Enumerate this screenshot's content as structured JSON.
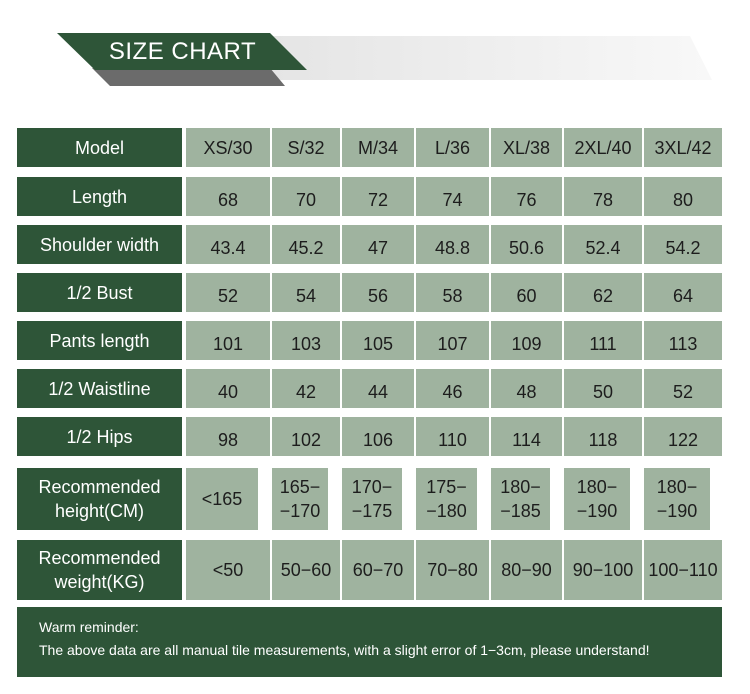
{
  "header": {
    "title": "SIZE CHART"
  },
  "table": {
    "header_label": "Model",
    "sizes": [
      "XS/30",
      "S/32",
      "M/34",
      "L/36",
      "XL/38",
      "2XL/40",
      "3XL/42"
    ],
    "rows": [
      {
        "label": "Length",
        "values": [
          "68",
          "70",
          "72",
          "74",
          "76",
          "78",
          "80"
        ]
      },
      {
        "label": "Shoulder width",
        "values": [
          "43.4",
          "45.2",
          "47",
          "48.8",
          "50.6",
          "52.4",
          "54.2"
        ]
      },
      {
        "label": "1/2 Bust",
        "values": [
          "52",
          "54",
          "56",
          "58",
          "60",
          "62",
          "64"
        ]
      },
      {
        "label": "Pants length",
        "values": [
          "101",
          "103",
          "105",
          "107",
          "109",
          "111",
          "113"
        ]
      },
      {
        "label": "1/2 Waistline",
        "values": [
          "40",
          "42",
          "44",
          "46",
          "48",
          "50",
          "52"
        ]
      },
      {
        "label": "1/2 Hips",
        "values": [
          "98",
          "102",
          "106",
          "110",
          "114",
          "118",
          "122"
        ]
      },
      {
        "label": "Recommended height(CM)",
        "values": [
          "<165",
          "165−170",
          "170−175",
          "175−180",
          "180−185",
          "180−190",
          "180−190"
        ]
      },
      {
        "label": "Recommended weight(KG)",
        "values": [
          "<50",
          "50−60",
          "60−70",
          "70−80",
          "80−90",
          "90−100",
          "100−110"
        ]
      }
    ]
  },
  "reminder": {
    "title": "Warm reminder:",
    "text": "The above data are all manual tile measurements, with a slight error of 1−3cm, please understand!"
  },
  "colors": {
    "dark_green": "#2e5538",
    "sage": "#9fb39f",
    "gray_ribbon": "#6b6b6b"
  }
}
